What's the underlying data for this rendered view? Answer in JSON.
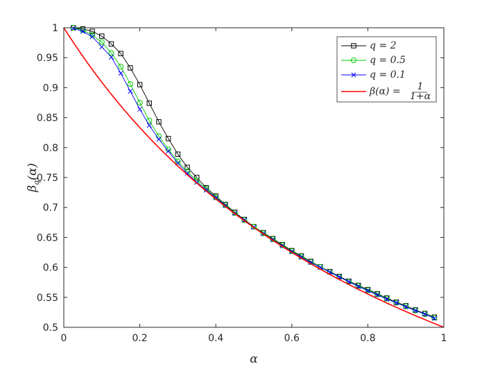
{
  "chart_data": {
    "type": "line",
    "title": "",
    "xlabel": "α",
    "ylabel": "β_q(α)",
    "xlim": [
      0,
      1
    ],
    "ylim": [
      0.5,
      1
    ],
    "xticks": [
      0,
      0.2,
      0.4,
      0.6,
      0.8,
      1
    ],
    "yticks": [
      0.5,
      0.55,
      0.6,
      0.65,
      0.7,
      0.75,
      0.8,
      0.85,
      0.9,
      0.95,
      1
    ],
    "xtick_labels": [
      "0",
      "0.2",
      "0.4",
      "0.6",
      "0.8",
      "1"
    ],
    "ytick_labels": [
      "0.5",
      "0.55",
      "0.6",
      "0.65",
      "0.7",
      "0.75",
      "0.8",
      "0.85",
      "0.9",
      "0.95",
      "1"
    ],
    "grid": false,
    "legend_position": "top-right",
    "x": [
      0.025,
      0.05,
      0.075,
      0.1,
      0.125,
      0.15,
      0.175,
      0.2,
      0.225,
      0.25,
      0.275,
      0.3,
      0.325,
      0.35,
      0.375,
      0.4,
      0.425,
      0.45,
      0.475,
      0.5,
      0.525,
      0.55,
      0.575,
      0.6,
      0.625,
      0.65,
      0.675,
      0.7,
      0.725,
      0.75,
      0.775,
      0.8,
      0.825,
      0.85,
      0.875,
      0.9,
      0.925,
      0.95,
      0.975
    ],
    "series": [
      {
        "name": "q = 2",
        "color": "#000000",
        "marker": "square",
        "values": [
          1.0,
          0.998,
          0.994,
          0.986,
          0.973,
          0.957,
          0.933,
          0.905,
          0.874,
          0.843,
          0.815,
          0.789,
          0.767,
          0.75,
          0.733,
          0.719,
          0.705,
          0.692,
          0.68,
          0.668,
          0.658,
          0.648,
          0.638,
          0.628,
          0.619,
          0.61,
          0.601,
          0.593,
          0.585,
          0.577,
          0.57,
          0.563,
          0.556,
          0.549,
          0.542,
          0.536,
          0.529,
          0.523,
          0.517
        ]
      },
      {
        "name": "q = 0.5",
        "color": "#00cc00",
        "marker": "circle",
        "values": [
          1.0,
          0.996,
          0.988,
          0.976,
          0.958,
          0.935,
          0.906,
          0.875,
          0.845,
          0.819,
          0.797,
          0.777,
          0.76,
          0.745,
          0.731,
          0.717,
          0.704,
          0.691,
          0.679,
          0.668,
          0.657,
          0.647,
          0.637,
          0.627,
          0.618,
          0.609,
          0.601,
          0.592,
          0.584,
          0.576,
          0.569,
          0.562,
          0.555,
          0.548,
          0.541,
          0.535,
          0.528,
          0.522,
          0.516
        ]
      },
      {
        "name": "q = 0.1",
        "color": "#0000ff",
        "marker": "x",
        "values": [
          0.999,
          0.994,
          0.985,
          0.968,
          0.951,
          0.924,
          0.894,
          0.864,
          0.837,
          0.814,
          0.794,
          0.774,
          0.757,
          0.742,
          0.729,
          0.716,
          0.703,
          0.69,
          0.679,
          0.667,
          0.656,
          0.646,
          0.636,
          0.626,
          0.617,
          0.608,
          0.6,
          0.592,
          0.584,
          0.576,
          0.568,
          0.561,
          0.554,
          0.547,
          0.541,
          0.534,
          0.528,
          0.522,
          0.515
        ]
      },
      {
        "name": "β(α) = 1/(1+α)",
        "color": "#ff0000",
        "marker": "none",
        "formula": "1/(1+α)"
      }
    ]
  },
  "legend": {
    "entries": [
      {
        "label": "q = 2"
      },
      {
        "label": "q = 0.5"
      },
      {
        "label": "q = 0.1"
      },
      {
        "label_prefix": "β(α) = ",
        "numerator": "1",
        "denominator": "1+α"
      }
    ]
  }
}
